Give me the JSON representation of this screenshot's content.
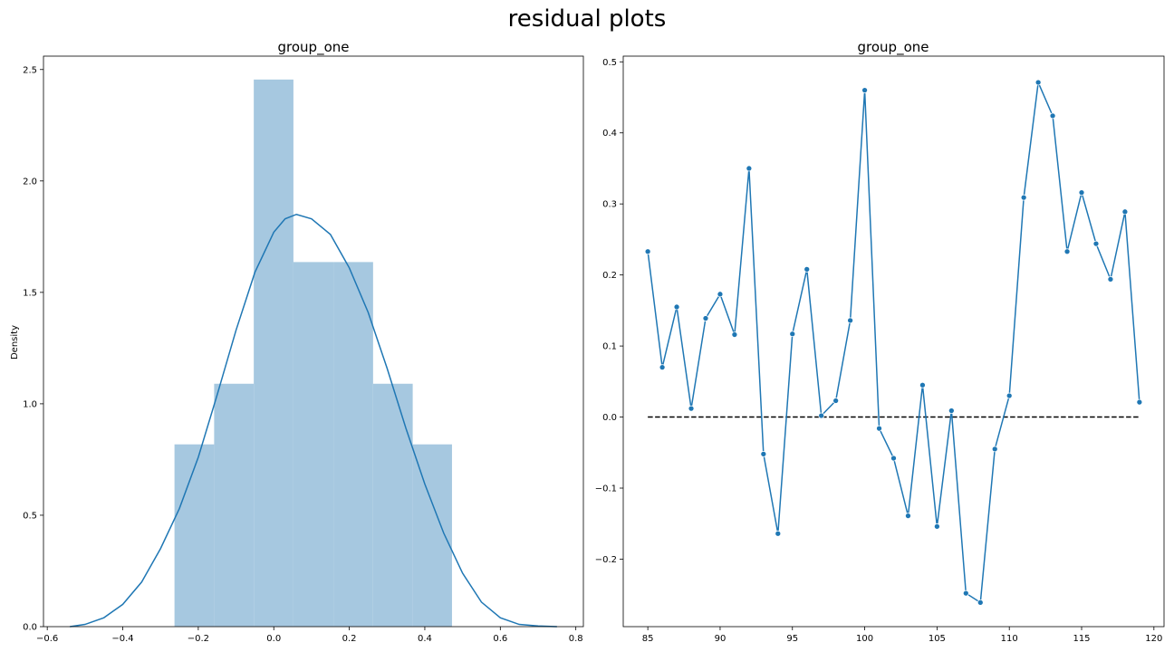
{
  "figure": {
    "title": "residual plots"
  },
  "colors": {
    "hist_fill": "#a6c8e0",
    "line": "#1f77b4",
    "zero_line": "#000000"
  },
  "chart_data": [
    {
      "type": "histogram+kde",
      "title": "group_one",
      "xlabel": "",
      "ylabel": "Density",
      "xlim": [
        -0.61,
        0.82
      ],
      "ylim": [
        0,
        2.56
      ],
      "xticks": [
        -0.6,
        -0.4,
        -0.2,
        0.0,
        0.2,
        0.4,
        0.6,
        0.8
      ],
      "xtick_labels": [
        "−0.6",
        "−0.4",
        "−0.2",
        "0.0",
        "0.2",
        "0.4",
        "0.6",
        "0.8"
      ],
      "yticks": [
        0.0,
        0.5,
        1.0,
        1.5,
        2.0,
        2.5
      ],
      "ytick_labels": [
        "0.0",
        "0.5",
        "1.0",
        "1.5",
        "2.0",
        "2.5"
      ],
      "bins": [
        {
          "x0": -0.263,
          "x1": -0.158,
          "density": 0.818
        },
        {
          "x0": -0.158,
          "x1": -0.053,
          "density": 1.09
        },
        {
          "x0": -0.053,
          "x1": 0.052,
          "density": 2.455
        },
        {
          "x0": 0.052,
          "x1": 0.158,
          "density": 1.636
        },
        {
          "x0": 0.158,
          "x1": 0.263,
          "density": 1.636
        },
        {
          "x0": 0.263,
          "x1": 0.368,
          "density": 1.09
        },
        {
          "x0": 0.368,
          "x1": 0.472,
          "density": 0.818
        }
      ],
      "kde": {
        "x": [
          -0.54,
          -0.5,
          -0.45,
          -0.4,
          -0.35,
          -0.3,
          -0.25,
          -0.2,
          -0.15,
          -0.1,
          -0.05,
          0.0,
          0.03,
          0.06,
          0.1,
          0.15,
          0.2,
          0.25,
          0.3,
          0.35,
          0.4,
          0.45,
          0.5,
          0.55,
          0.6,
          0.65,
          0.7,
          0.75
        ],
        "y": [
          0.0,
          0.01,
          0.04,
          0.1,
          0.2,
          0.35,
          0.53,
          0.76,
          1.04,
          1.33,
          1.59,
          1.77,
          1.83,
          1.85,
          1.83,
          1.76,
          1.61,
          1.41,
          1.16,
          0.89,
          0.64,
          0.42,
          0.24,
          0.11,
          0.04,
          0.01,
          0.003,
          0.0
        ]
      }
    },
    {
      "type": "line",
      "title": "group_one",
      "xlabel": "",
      "ylabel": "",
      "xlim": [
        83.3,
        120.7
      ],
      "ylim": [
        -0.295,
        0.508
      ],
      "xticks": [
        85,
        90,
        95,
        100,
        105,
        110,
        115,
        120
      ],
      "xtick_labels": [
        "85",
        "90",
        "95",
        "100",
        "105",
        "110",
        "115",
        "120"
      ],
      "yticks": [
        -0.2,
        -0.1,
        0.0,
        0.1,
        0.2,
        0.3,
        0.4,
        0.5
      ],
      "ytick_labels": [
        "−0.2",
        "−0.1",
        "0.0",
        "0.1",
        "0.2",
        "0.3",
        "0.4",
        "0.5"
      ],
      "x": [
        85,
        86,
        87,
        88,
        89,
        90,
        91,
        92,
        93,
        94,
        95,
        96,
        97,
        98,
        99,
        100,
        101,
        102,
        103,
        104,
        105,
        106,
        107,
        108,
        109,
        110,
        111,
        112,
        113,
        114,
        115,
        116,
        117,
        118,
        119
      ],
      "y": [
        0.233,
        0.07,
        0.155,
        0.012,
        0.139,
        0.173,
        0.116,
        0.35,
        -0.052,
        -0.164,
        0.117,
        0.208,
        0.002,
        0.023,
        0.136,
        0.46,
        -0.016,
        -0.058,
        -0.139,
        0.045,
        -0.154,
        0.009,
        -0.248,
        -0.261,
        -0.045,
        0.03,
        0.309,
        0.471,
        0.424,
        0.233,
        0.316,
        0.244,
        0.194,
        0.289,
        0.021
      ],
      "reference_line": {
        "y": 0.0,
        "x_from": 85,
        "x_to": 119,
        "style": "dashed"
      }
    }
  ]
}
